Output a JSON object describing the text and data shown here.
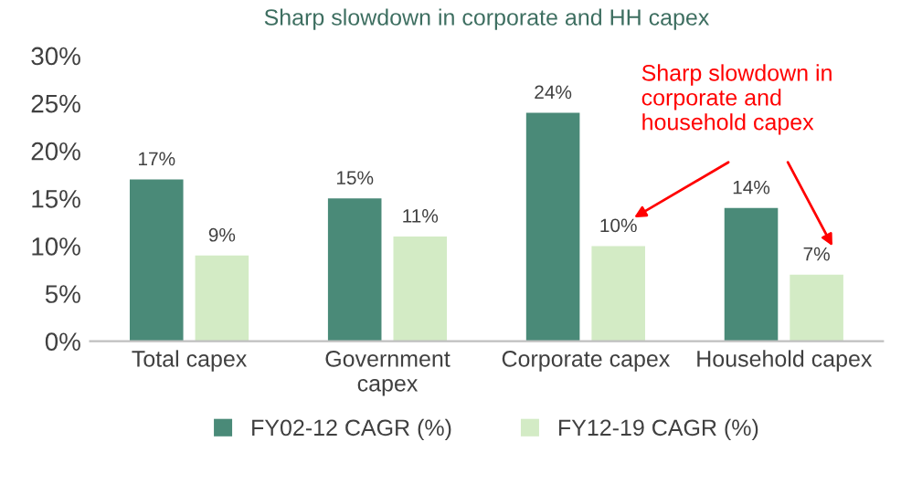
{
  "chart_data": {
    "type": "bar",
    "title": "Sharp slowdown in corporate and HH capex",
    "categories": [
      "Total capex",
      "Government\ncapex",
      "Corporate capex",
      "Household capex"
    ],
    "series": [
      {
        "name": "FY02-12 CAGR (%)",
        "color": "#4a8a78",
        "values": [
          17,
          15,
          24,
          14
        ],
        "value_labels": [
          "17%",
          "15%",
          "24%",
          "14%"
        ]
      },
      {
        "name": "FY12-19 CAGR (%)",
        "color": "#d3ebc5",
        "values": [
          9,
          11,
          10,
          7
        ],
        "value_labels": [
          "9%",
          "11%",
          "10%",
          "7%"
        ]
      }
    ],
    "ylim": [
      0,
      30
    ],
    "yticks": [
      {
        "value": 0,
        "label": "0%"
      },
      {
        "value": 5,
        "label": "5%"
      },
      {
        "value": 10,
        "label": "10%"
      },
      {
        "value": 15,
        "label": "15%"
      },
      {
        "value": 20,
        "label": "20%"
      },
      {
        "value": 25,
        "label": "25%"
      },
      {
        "value": 30,
        "label": "30%"
      }
    ],
    "annotations": [
      "Sharp slowdown in\ncorporate and\nhousehold capex"
    ],
    "grid": false,
    "legend": "bottom"
  }
}
